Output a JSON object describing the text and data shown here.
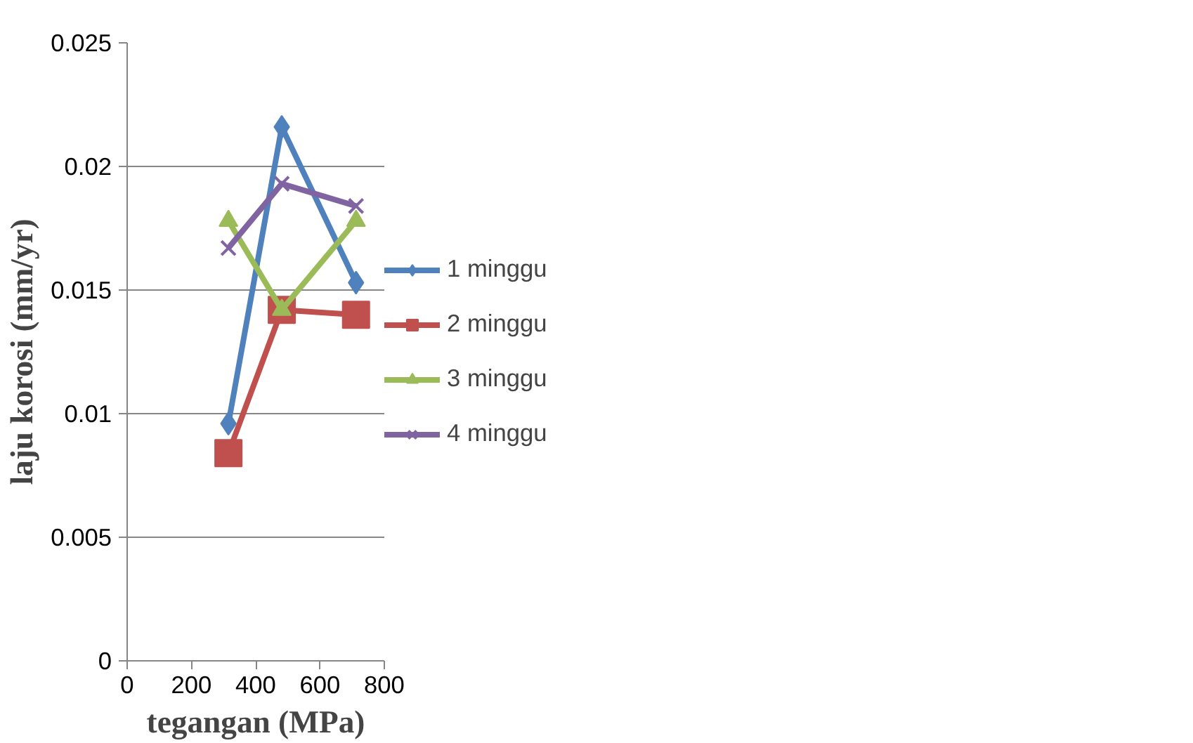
{
  "chart_data": {
    "type": "line",
    "xlabel": "tegangan (MPa)",
    "ylabel": "laju korosi (mm/yr)",
    "xlim": [
      0,
      800
    ],
    "xticks": [
      0,
      200,
      400,
      600,
      800
    ],
    "ylim": [
      0,
      0.025
    ],
    "yticks": [
      0,
      0.005,
      0.01,
      0.015,
      0.02,
      0.025
    ],
    "grid": "y",
    "legend": "right",
    "line_style": "solid",
    "series": [
      {
        "name": "1 minggu",
        "color": "#4f81bd",
        "marker": "diamond",
        "x": [
          315,
          481,
          712
        ],
        "values": [
          0.0096,
          0.0216,
          0.0153
        ]
      },
      {
        "name": "2 minggu",
        "color": "#c0504d",
        "marker": "square",
        "x": [
          315,
          481,
          712
        ],
        "values": [
          0.0084,
          0.0142,
          0.014
        ]
      },
      {
        "name": "3 minggu",
        "color": "#9bbb59",
        "marker": "triangle",
        "x": [
          315,
          481,
          712
        ],
        "values": [
          0.0178,
          0.0142,
          0.0178
        ]
      },
      {
        "name": "4 minggu",
        "color": "#8064a2",
        "marker": "cross",
        "x": [
          315,
          481,
          712
        ],
        "values": [
          0.0167,
          0.0193,
          0.0184
        ]
      }
    ]
  }
}
